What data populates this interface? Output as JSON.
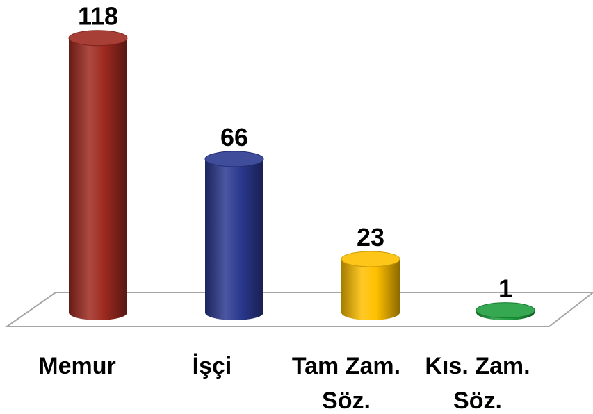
{
  "chart_data": {
    "type": "bar3d",
    "categories": [
      "Memur",
      "İşçi",
      "Tam Zam. Söz.",
      "Kıs. Zam. Söz."
    ],
    "values": [
      118,
      66,
      23,
      1
    ],
    "colors": [
      "#9e2a20",
      "#2b3990",
      "#ffc000",
      "#1e9e3e"
    ],
    "ylim": [
      0,
      120
    ]
  }
}
